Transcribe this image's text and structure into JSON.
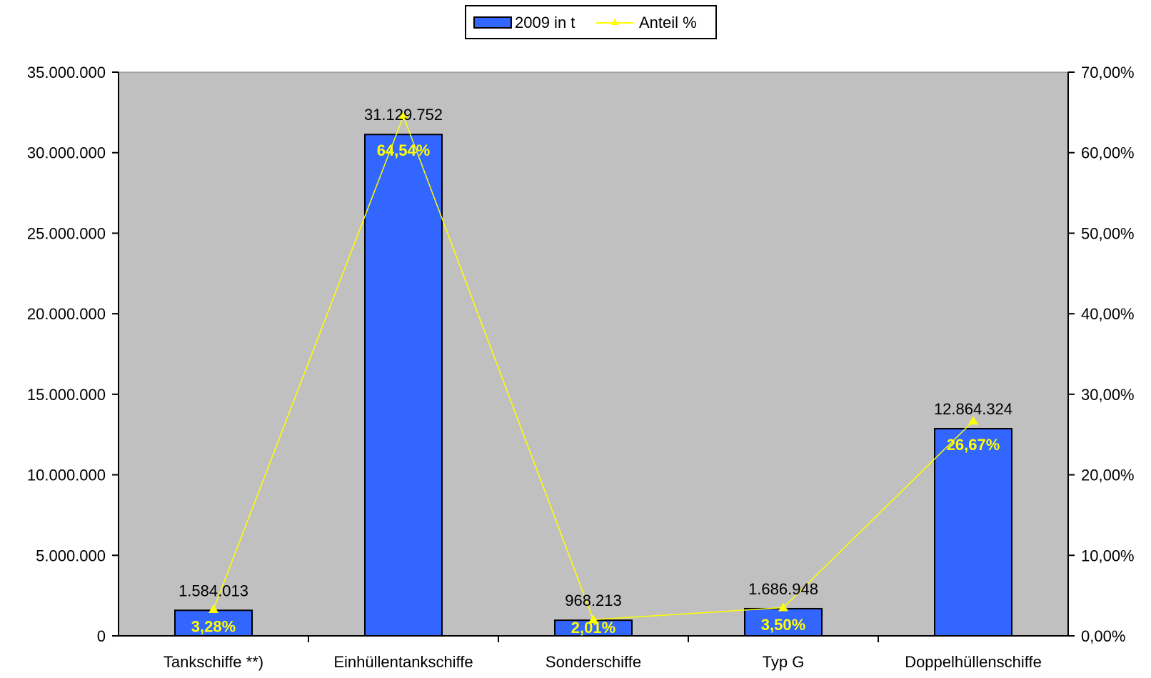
{
  "chart_data": {
    "type": "bar",
    "categories": [
      "Tankschiffe **)",
      "Einhüllentankschiffe",
      "Sonderschiffe",
      "Typ G",
      "Doppelhüllenschiffe"
    ],
    "series": [
      {
        "name": "2009 in t",
        "kind": "bar",
        "axis": "left",
        "values": [
          1584013,
          31129752,
          968213,
          1686948,
          12864324
        ],
        "labels": [
          "1.584.013",
          "31.129.752",
          "968.213",
          "1.686.948",
          "12.864.324"
        ],
        "color": "#3366ff"
      },
      {
        "name": "Anteil %",
        "kind": "line",
        "axis": "right",
        "values": [
          3.28,
          64.54,
          2.01,
          3.5,
          26.67
        ],
        "labels": [
          "3,28%",
          "64,54%",
          "2,01%",
          "3,50%",
          "26,67%"
        ],
        "color": "#ffff00"
      }
    ],
    "y_left": {
      "range": [
        0,
        35000000
      ],
      "ticks": [
        0,
        5000000,
        10000000,
        15000000,
        20000000,
        25000000,
        30000000,
        35000000
      ],
      "tick_labels": [
        "0",
        "5.000.000",
        "10.000.000",
        "15.000.000",
        "20.000.000",
        "25.000.000",
        "30.000.000",
        "35.000.000"
      ]
    },
    "y_right": {
      "range": [
        0,
        70
      ],
      "ticks": [
        0,
        10,
        20,
        30,
        40,
        50,
        60,
        70
      ],
      "tick_labels": [
        "0,00%",
        "10,00%",
        "20,00%",
        "30,00%",
        "40,00%",
        "50,00%",
        "60,00%",
        "70,00%"
      ]
    },
    "legend_position": "top-center",
    "plot_background": "#c0c0c0",
    "grid": false
  }
}
